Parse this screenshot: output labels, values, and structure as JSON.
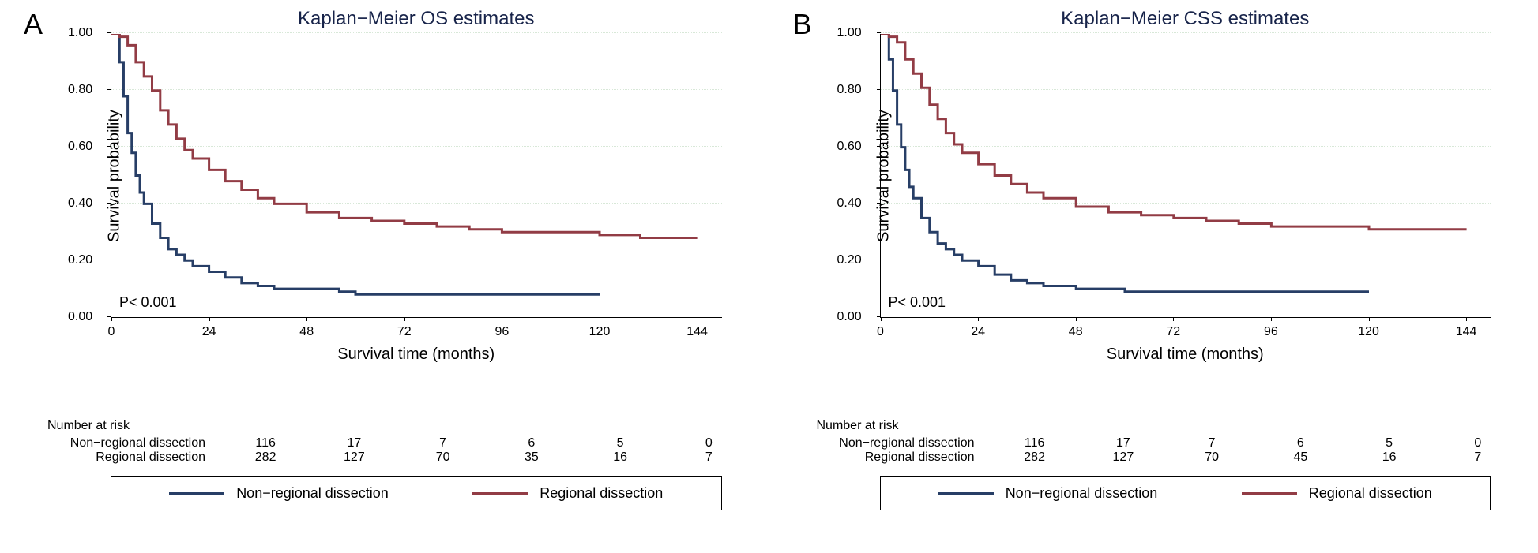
{
  "panels": {
    "A": {
      "label": "A",
      "title": "Kaplan−Meier OS estimates",
      "ylabel": "Survival probability",
      "xlabel": "Survival time (months)",
      "pvalue": "P< 0.001",
      "ylim": [
        0,
        1.0
      ],
      "yticks": [
        0.0,
        0.2,
        0.4,
        0.6,
        0.8,
        1.0
      ],
      "ytick_labels": [
        "0.00",
        "0.20",
        "0.40",
        "0.60",
        "0.80",
        "1.00"
      ],
      "xlim": [
        0,
        150
      ],
      "xticks": [
        0,
        24,
        48,
        72,
        96,
        120,
        144
      ],
      "grid_y": [
        0.0,
        0.2,
        0.4,
        0.6,
        0.8,
        1.0
      ],
      "grid_color": "#d8e8d8",
      "background_color": "#ffffff",
      "axis_fontsize": 16,
      "label_fontsize": 20,
      "title_fontsize": 24,
      "title_color": "#18244a",
      "line_width": 3,
      "series": [
        {
          "name": "Non−regional dissection",
          "color": "#273e66",
          "points": [
            [
              0,
              1.0
            ],
            [
              1,
              1.0
            ],
            [
              2,
              0.9
            ],
            [
              3,
              0.78
            ],
            [
              4,
              0.65
            ],
            [
              5,
              0.58
            ],
            [
              6,
              0.5
            ],
            [
              7,
              0.44
            ],
            [
              8,
              0.4
            ],
            [
              10,
              0.33
            ],
            [
              12,
              0.28
            ],
            [
              14,
              0.24
            ],
            [
              16,
              0.22
            ],
            [
              18,
              0.2
            ],
            [
              20,
              0.18
            ],
            [
              24,
              0.16
            ],
            [
              28,
              0.14
            ],
            [
              32,
              0.12
            ],
            [
              36,
              0.11
            ],
            [
              40,
              0.1
            ],
            [
              48,
              0.1
            ],
            [
              56,
              0.09
            ],
            [
              60,
              0.08
            ],
            [
              72,
              0.08
            ],
            [
              96,
              0.08
            ],
            [
              120,
              0.08
            ]
          ]
        },
        {
          "name": "Regional dissection",
          "color": "#923c45",
          "points": [
            [
              0,
              1.0
            ],
            [
              2,
              0.99
            ],
            [
              4,
              0.96
            ],
            [
              6,
              0.9
            ],
            [
              8,
              0.85
            ],
            [
              10,
              0.8
            ],
            [
              12,
              0.73
            ],
            [
              14,
              0.68
            ],
            [
              16,
              0.63
            ],
            [
              18,
              0.59
            ],
            [
              20,
              0.56
            ],
            [
              24,
              0.52
            ],
            [
              28,
              0.48
            ],
            [
              32,
              0.45
            ],
            [
              36,
              0.42
            ],
            [
              40,
              0.4
            ],
            [
              48,
              0.37
            ],
            [
              56,
              0.35
            ],
            [
              64,
              0.34
            ],
            [
              72,
              0.33
            ],
            [
              80,
              0.32
            ],
            [
              88,
              0.31
            ],
            [
              96,
              0.3
            ],
            [
              108,
              0.3
            ],
            [
              120,
              0.29
            ],
            [
              130,
              0.28
            ],
            [
              144,
              0.28
            ]
          ]
        }
      ],
      "risk_table": {
        "header": "Number at risk",
        "rows": [
          {
            "label": "Non−regional dissection",
            "values": [
              116,
              17,
              7,
              6,
              5,
              0
            ]
          },
          {
            "label": "Regional dissection",
            "values": [
              282,
              127,
              70,
              35,
              16,
              7
            ]
          }
        ],
        "at_x": [
          0,
          24,
          48,
          72,
          96,
          120
        ]
      }
    },
    "B": {
      "label": "B",
      "title": "Kaplan−Meier CSS estimates",
      "ylabel": "Survival probability",
      "xlabel": "Survival time (months)",
      "pvalue": "P< 0.001",
      "ylim": [
        0,
        1.0
      ],
      "yticks": [
        0.0,
        0.2,
        0.4,
        0.6,
        0.8,
        1.0
      ],
      "ytick_labels": [
        "0.00",
        "0.20",
        "0.40",
        "0.60",
        "0.80",
        "1.00"
      ],
      "xlim": [
        0,
        150
      ],
      "xticks": [
        0,
        24,
        48,
        72,
        96,
        120,
        144
      ],
      "grid_y": [
        0.0,
        0.2,
        0.4,
        0.6,
        0.8,
        1.0
      ],
      "grid_color": "#d8e8d8",
      "background_color": "#ffffff",
      "axis_fontsize": 16,
      "label_fontsize": 20,
      "title_fontsize": 24,
      "title_color": "#18244a",
      "line_width": 3,
      "series": [
        {
          "name": "Non−regional dissection",
          "color": "#273e66",
          "points": [
            [
              0,
              1.0
            ],
            [
              1,
              1.0
            ],
            [
              2,
              0.91
            ],
            [
              3,
              0.8
            ],
            [
              4,
              0.68
            ],
            [
              5,
              0.6
            ],
            [
              6,
              0.52
            ],
            [
              7,
              0.46
            ],
            [
              8,
              0.42
            ],
            [
              10,
              0.35
            ],
            [
              12,
              0.3
            ],
            [
              14,
              0.26
            ],
            [
              16,
              0.24
            ],
            [
              18,
              0.22
            ],
            [
              20,
              0.2
            ],
            [
              24,
              0.18
            ],
            [
              28,
              0.15
            ],
            [
              32,
              0.13
            ],
            [
              36,
              0.12
            ],
            [
              40,
              0.11
            ],
            [
              48,
              0.1
            ],
            [
              56,
              0.1
            ],
            [
              60,
              0.09
            ],
            [
              72,
              0.09
            ],
            [
              96,
              0.09
            ],
            [
              120,
              0.09
            ]
          ]
        },
        {
          "name": "Regional dissection",
          "color": "#923c45",
          "points": [
            [
              0,
              1.0
            ],
            [
              2,
              0.99
            ],
            [
              4,
              0.97
            ],
            [
              6,
              0.91
            ],
            [
              8,
              0.86
            ],
            [
              10,
              0.81
            ],
            [
              12,
              0.75
            ],
            [
              14,
              0.7
            ],
            [
              16,
              0.65
            ],
            [
              18,
              0.61
            ],
            [
              20,
              0.58
            ],
            [
              24,
              0.54
            ],
            [
              28,
              0.5
            ],
            [
              32,
              0.47
            ],
            [
              36,
              0.44
            ],
            [
              40,
              0.42
            ],
            [
              48,
              0.39
            ],
            [
              56,
              0.37
            ],
            [
              64,
              0.36
            ],
            [
              72,
              0.35
            ],
            [
              80,
              0.34
            ],
            [
              88,
              0.33
            ],
            [
              96,
              0.32
            ],
            [
              108,
              0.32
            ],
            [
              120,
              0.31
            ],
            [
              130,
              0.31
            ],
            [
              144,
              0.31
            ]
          ]
        }
      ],
      "risk_table": {
        "header": "Number at risk",
        "rows": [
          {
            "label": "Non−regional dissection",
            "values": [
              116,
              17,
              7,
              6,
              5,
              0
            ]
          },
          {
            "label": "Regional dissection",
            "values": [
              282,
              127,
              70,
              45,
              16,
              7
            ]
          }
        ],
        "at_x": [
          0,
          24,
          48,
          72,
          96,
          120
        ]
      }
    }
  },
  "legend": {
    "items": [
      {
        "label": "Non−regional dissection",
        "color": "#273e66"
      },
      {
        "label": "Regional dissection",
        "color": "#923c45"
      }
    ]
  }
}
